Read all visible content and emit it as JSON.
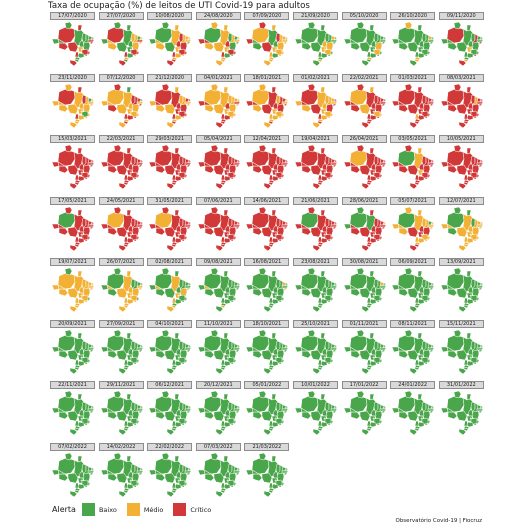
{
  "title": "Taxa de ocupação (%) de leitos de UTI Covid-19 para adultos",
  "footer": "Observatório Covid-19 | Fiocruz",
  "legend": {
    "title": "Alerta",
    "items": [
      {
        "label": "Baixo",
        "color": "#4aa64a"
      },
      {
        "label": "Médio",
        "color": "#f2b134"
      },
      {
        "label": "Crítico",
        "color": "#d13838"
      }
    ]
  },
  "level_colors": {
    "B": "#4aa64a",
    "M": "#f2b134",
    "C": "#d13838"
  },
  "panels": [
    {
      "date": "17/07/2020",
      "states": "CBCBBCBBBBCCCMBBCCMMCCBBBBCB"
    },
    {
      "date": "27/07/2020",
      "states": "CBBBBMMMBMMCMMMBBCBMCCMBMBCM"
    },
    {
      "date": "10/08/2020",
      "states": "BBMMBMCMMMMMBBCCBCMMCCMMMCCM"
    },
    {
      "date": "24/08/2020",
      "states": "BMMMCMBMBMMMBBBCMCMBCCBBMMMC"
    },
    {
      "date": "07/09/2020",
      "states": "MCMBCBCMMMBMMMMBCMMBMMMBMMMB"
    },
    {
      "date": "21/09/2020",
      "states": "BBBBBBBBMBMBBBMMBBMMMBBBBMBB"
    },
    {
      "date": "05/10/2020",
      "states": "BBBBBBBBBBBBBBMBBBBBMBBBMBBB"
    },
    {
      "date": "26/10/2020",
      "states": "BMBBBBBBMBBBBBBBBBBBBBBBMMBB"
    },
    {
      "date": "09/11/2020",
      "states": "CBBBBBBCBBBBCBBBBBMBBBCBBMCB"
    },
    {
      "date": "23/11/2020",
      "states": "CMCMMMCMBMMMMMMMMCMMBMMMMMMM"
    },
    {
      "date": "07/12/2020",
      "states": "MCBMMCCCCBMMCCMMMCMCMMCCMCMM"
    },
    {
      "date": "21/12/2020",
      "states": "CCMCMMMMCCMMMMCCMCCMCCMMMCMC"
    },
    {
      "date": "04/01/2021",
      "states": "MMMMCMMMMMCCMMMCMCMMMMMCCCCC"
    },
    {
      "date": "18/01/2021",
      "states": "MMCCCMMCCMMMCMCCCMMCMMMMMCMC"
    },
    {
      "date": "01/02/2021",
      "states": "CCMMMMMMMCCMCCCMCCMMMMMMMCMC"
    },
    {
      "date": "22/02/2021",
      "states": "MCMCCCCCCCMCCCCCMCCCMMCCCCCC"
    },
    {
      "date": "01/03/2021",
      "states": "CCCCCCCCCCCCCMCCCMCCCCCCCCCC"
    },
    {
      "date": "08/03/2021",
      "states": "CCCCCCCMCCCCCCCCCCCCCCCCCCCC"
    },
    {
      "date": "15/03/2021",
      "states": "CCCCCCCCCCCCCCCCCCCCCCCCCCCC"
    },
    {
      "date": "22/03/2021",
      "states": "CCCCCCCCCCCCCCCCCCCCCCCCCCCC"
    },
    {
      "date": "29/03/2021",
      "states": "CCCCCCCCCCCCCCCCCCCCCCCCCCCC"
    },
    {
      "date": "05/04/2021",
      "states": "CCCCCCCCCCCCCCCCCCCCCCCCCCCC"
    },
    {
      "date": "12/04/2021",
      "states": "CCCCCCCCCCCCCCCCCCCCCCCCCCCC"
    },
    {
      "date": "19/04/2021",
      "states": "CCCCCCCCCCCCCCCCCCCCCCCCCCCC"
    },
    {
      "date": "26/04/2021",
      "states": "MCCCCCCCCCCCCCCCCCCCCCCCCCCC"
    },
    {
      "date": "03/05/2021",
      "states": "BCMMCCCCCCCCCCCCCCMCCCCCCCCC"
    },
    {
      "date": "10/05/2021",
      "states": "CCCCCCCCCCCCCCCCCCCCCCCCCCCC"
    },
    {
      "date": "17/05/2021",
      "states": "BCCCCCCCCCCCCCCCCCCCCCCCCCCC"
    },
    {
      "date": "24/05/2021",
      "states": "MCCCCCCCCCCCCCCCCCCCCCCCCCCC"
    },
    {
      "date": "31/05/2021",
      "states": "MCCCCCCCCCCCCCCCCCCCCCCCCCCC"
    },
    {
      "date": "07/06/2021",
      "states": "CCCCCCCCCCCCCCCCCCCCCCCCCCCC"
    },
    {
      "date": "14/06/2021",
      "states": "CCCCCCCCCCCCCCCCCCCCCCCCCCCC"
    },
    {
      "date": "21/06/2021",
      "states": "BCCCCCCCCCCCCCCCCCCCCCCCCCCC"
    },
    {
      "date": "28/06/2021",
      "states": "BBCBBCCCCMMCCCCCCCCMCCCCCCCC"
    },
    {
      "date": "05/07/2021",
      "states": "BMMMMMMMBMMMMMCCCMCMMMMMMCCM"
    },
    {
      "date": "12/07/2021",
      "states": "BBBMMBBMMMBMMMMMMMMMMMMMMMMM"
    },
    {
      "date": "19/07/2021",
      "states": "MBMMMMMMMMMMMMMMMMMMMBMMMMMM"
    },
    {
      "date": "26/07/2021",
      "states": "BBMMBBBBBBMMMMMMMMMMMBMMMMMM"
    },
    {
      "date": "02/08/2021",
      "states": "BBBMBBBBBBBBMBMBBMMMBBBBBMMM"
    },
    {
      "date": "09/08/2021",
      "states": "BBBBBBBBBBBBBBBBBBBBBBBBBMBM"
    },
    {
      "date": "16/08/2021",
      "states": "BBBBBBBBMBBBMBBBBBBBBBBBBBBB"
    },
    {
      "date": "23/08/2021",
      "states": "BBBBBBBBBBBBBBBBBBBBBBBBBBBB"
    },
    {
      "date": "30/08/2021",
      "states": "BBBBBBBBMBBBBBBBBBBBBBBBBBBB"
    },
    {
      "date": "06/09/2021",
      "states": "BBBBBBBBBBBBBBBBBBBBBBBBBBBB"
    },
    {
      "date": "13/09/2021",
      "states": "BBBBBBBBBBBBBBBBBBBBBBBBBBBB"
    },
    {
      "date": "20/09/2021",
      "states": "BBBBBBBBBBBBBBBBBBBBBBBBBBBB"
    },
    {
      "date": "27/09/2021",
      "states": "BBBBBBBBBBBBBBBBBBBBBBBBBBBB"
    },
    {
      "date": "04/10/2021",
      "states": "BBBBBBBBBBBBBBBBBBBBBBBBBBBB"
    },
    {
      "date": "11/10/2021",
      "states": "BBBBBBBBBBBBBBBBBBBBBBBBBBBB"
    },
    {
      "date": "18/10/2021",
      "states": "BBBBBBBBBBBBBBBBBBBBBBBBBBBB"
    },
    {
      "date": "25/10/2021",
      "states": "BBBBBBBBBBBBBBBBBBBBBBBBBBBB"
    },
    {
      "date": "01/11/2021",
      "states": "BBBBBBBBBBBBBBBBBBBBBBBBBBBB"
    },
    {
      "date": "08/11/2021",
      "states": "BBBBBBBBBBBBBBBBBBBBBBBBBBBB"
    },
    {
      "date": "15/11/2021",
      "states": "BBBBBBBBBBBBBBBBBBBBBBBBBBBB"
    },
    {
      "date": "22/11/2021",
      "states": "BBBBBBBBBBBBBBBBBBBBBBBBBBBB"
    },
    {
      "date": "29/11/2021",
      "states": "BBBBBBBBBBBBBBBBBBBBBBBBBBBB"
    },
    {
      "date": "06/12/2021",
      "states": "BBBBBBBBBBBBBBBBBBBBBBBBBBBB"
    },
    {
      "date": "20/12/2021",
      "states": "BBBBBBBBBBBBBBBBBBBBBBBBBBBB"
    },
    {
      "date": "05/01/2022",
      "states": "BBBBBBBBBBBBBBBBBBBBBBBBBBBB"
    },
    {
      "date": "10/01/2022",
      "states": "BBBBBBBBBBBBBBBBBBBBBBBBBBBB"
    },
    {
      "date": "17/01/2022",
      "states": "BBBBBBBBBBBBBBBBBBBBBBBBBBBB"
    },
    {
      "date": "24/01/2022",
      "states": "BBBBBBBBBBBBBBBBBBBBBBBBBBBB"
    },
    {
      "date": "31/01/2022",
      "states": "BBBBBBBBBBBBBBBBBBBBBBBBBBBB"
    },
    {
      "date": "07/02/2022",
      "states": "BBBBBBBBBBBBBBBBBBBBBBBBBBBB"
    },
    {
      "date": "14/02/2022",
      "states": "BBBBBBBBBBBBBBBBBBBBBBBBBBBB"
    },
    {
      "date": "22/02/2022",
      "states": "BBBBBBBBBBBBBBBBBBBBBBBBBBBB"
    },
    {
      "date": "07/03/2022",
      "states": "BBBBBBBBBBBBBBBBBBBBBBBBBBBB"
    },
    {
      "date": "21/03/2022",
      "states": "BBBBBBBBBBBBBBBBBBBBBBBBBBBB"
    }
  ]
}
